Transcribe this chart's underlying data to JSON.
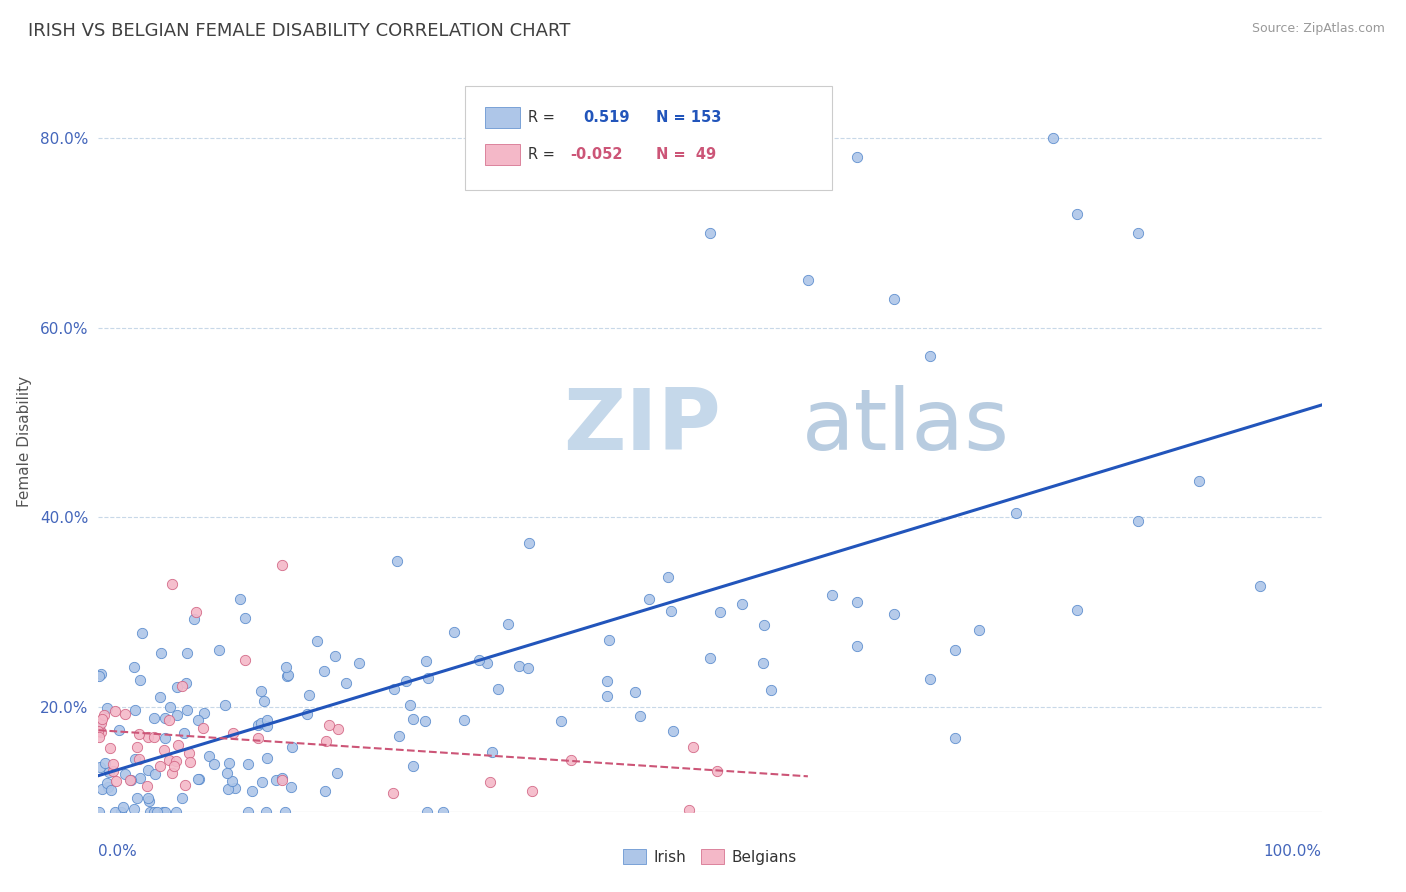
{
  "title": "IRISH VS BELGIAN FEMALE DISABILITY CORRELATION CHART",
  "source_text": "Source: ZipAtlas.com",
  "ylabel": "Female Disability",
  "irish_color": "#aec6e8",
  "irish_edge_color": "#5588cc",
  "belgian_color": "#f4b8c8",
  "belgian_edge_color": "#d06080",
  "irish_line_color": "#2255bb",
  "belgian_line_color": "#cc5577",
  "watermark_text": "ZIPatlas",
  "watermark_color": "#dde8f0",
  "background_color": "#ffffff",
  "grid_color": "#c8d8e8",
  "title_color": "#404040",
  "axis_tick_color": "#4466bb",
  "irish_R": 0.519,
  "irish_N": 153,
  "belgian_R": -0.052,
  "belgian_N": 49,
  "xlim": [
    0.0,
    1.0
  ],
  "ylim": [
    0.09,
    0.87
  ],
  "ytick_vals": [
    0.2,
    0.4,
    0.6,
    0.8
  ],
  "title_fontsize": 13,
  "axis_tick_fontsize": 11,
  "ylabel_fontsize": 11
}
